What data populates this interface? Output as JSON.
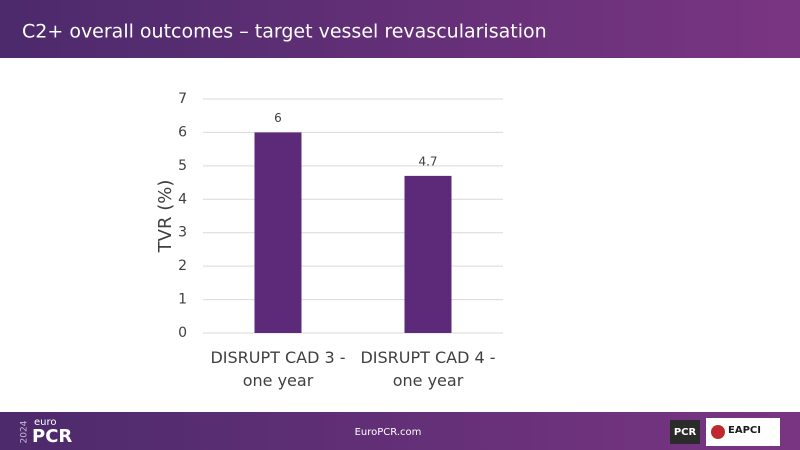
{
  "chart_data": {
    "type": "bar",
    "title": "C2+ overall outcomes – target vessel revascularisation",
    "y_label": "TVR (%)",
    "categories": [
      "DISRUPT CAD 3 - one year",
      "DISRUPT CAD 4 - one year"
    ],
    "values": [
      6,
      4.7
    ],
    "color": "#5c2a78",
    "ylim": [
      0,
      7
    ],
    "yticks": [
      0,
      1,
      2,
      3,
      4,
      5,
      6,
      7
    ],
    "grid": true
  },
  "footer": {
    "year": "2024",
    "logo_top": "euro",
    "logo_main": "PCR",
    "url": "EuroPCR.com",
    "badge_1": "PCR",
    "badge_2": "EAPCI"
  }
}
